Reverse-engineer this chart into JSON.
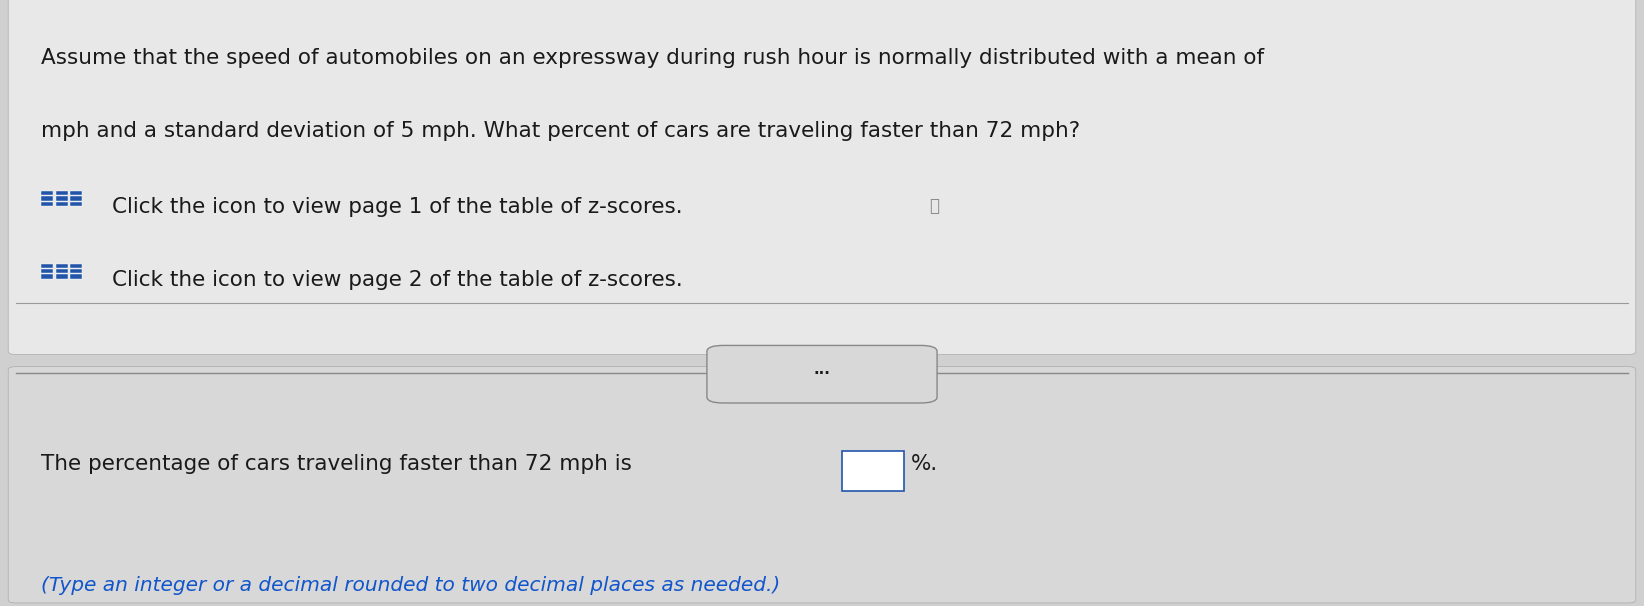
{
  "background_color": "#d0d0d0",
  "top_panel_bg": "#e8e8e8",
  "bottom_panel_bg": "#d8d8d8",
  "line1": "Assume that the speed of automobiles on an expressway during rush hour is normally distributed with a mean of",
  "line2": "mph and a standard deviation of 5 mph. What percent of cars are traveling faster than 72 mph?",
  "click_line1": "Click the icon to view page 1 of the table of z-scores.",
  "click_line2": "Click the icon to view page 2 of the table of z-scores.",
  "answer_line1": "The percentage of cars traveling faster than 72 mph is",
  "answer_line2": "(Type an integer or a decimal rounded to two decimal places as needed.)",
  "divider_dots": "...",
  "text_color": "#1a1a1a",
  "blue_icon_color": "#2255aa",
  "icon_bg": "#2255aa",
  "font_size_main": 15.5,
  "font_size_click": 15.5,
  "font_size_answer": 15.5,
  "font_size_note": 14.5
}
